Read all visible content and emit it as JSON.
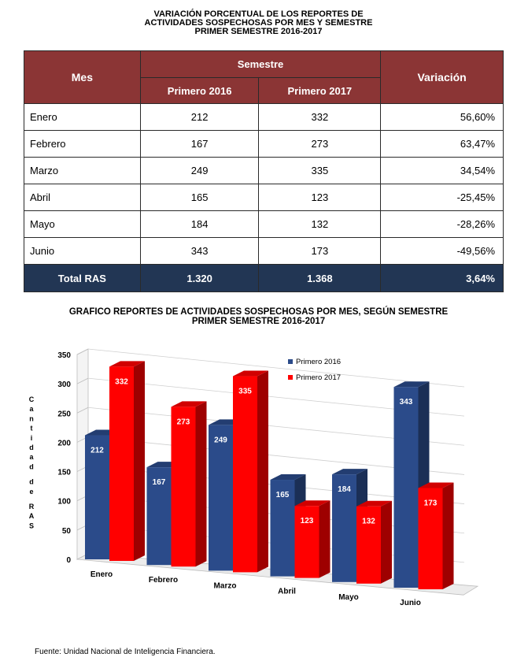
{
  "table": {
    "title_lines": [
      "VARIACIÓN PORCENTUAL DE LOS REPORTES DE",
      "ACTIVIDADES SOSPECHOSAS POR MES Y SEMESTRE",
      "PRIMER SEMESTRE 2016-2017"
    ],
    "headers": {
      "mes": "Mes",
      "semestre": "Semestre",
      "col_2016": "Primero 2016",
      "col_2017": "Primero 2017",
      "variacion": "Variación"
    },
    "rows": [
      {
        "mes": "Enero",
        "v2016": "212",
        "v2017": "332",
        "variacion": "56,60%"
      },
      {
        "mes": "Febrero",
        "v2016": "167",
        "v2017": "273",
        "variacion": "63,47%"
      },
      {
        "mes": "Marzo",
        "v2016": "249",
        "v2017": "335",
        "variacion": "34,54%"
      },
      {
        "mes": "Abril",
        "v2016": "165",
        "v2017": "123",
        "variacion": "-25,45%"
      },
      {
        "mes": "Mayo",
        "v2016": "184",
        "v2017": "132",
        "variacion": "-28,26%"
      },
      {
        "mes": "Junio",
        "v2016": "343",
        "v2017": "173",
        "variacion": "-49,56%"
      }
    ],
    "total": {
      "label": "Total RAS",
      "v2016": "1.320",
      "v2017": "1.368",
      "variacion": "3,64%"
    },
    "colors": {
      "header": "#8b3535",
      "total": "#223654"
    }
  },
  "chart_data": {
    "type": "bar",
    "title_lines": [
      "GRAFICO REPORTES DE ACTIVIDADES SOSPECHOSAS POR MES, SEGÚN SEMESTRE",
      "PRIMER SEMESTRE 2016-2017"
    ],
    "categories": [
      "Enero",
      "Febrero",
      "Marzo",
      "Abril",
      "Mayo",
      "Junio"
    ],
    "series": [
      {
        "name": "Primero 2016",
        "values": [
          212,
          167,
          249,
          165,
          184,
          343
        ],
        "color": "#2b4b8a"
      },
      {
        "name": "Primero 2017",
        "values": [
          332,
          273,
          335,
          123,
          132,
          173
        ],
        "color": "#ff0000"
      }
    ],
    "ylabel": "Cantidad de RAS",
    "ylim": [
      0,
      350
    ],
    "yticks": [
      0,
      50,
      100,
      150,
      200,
      250,
      300,
      350
    ],
    "legend_position": "top-right",
    "grid": true,
    "style": "3d-clustered-column"
  },
  "footnote": "Fuente: Unidad Nacional de Inteligencia Financiera."
}
